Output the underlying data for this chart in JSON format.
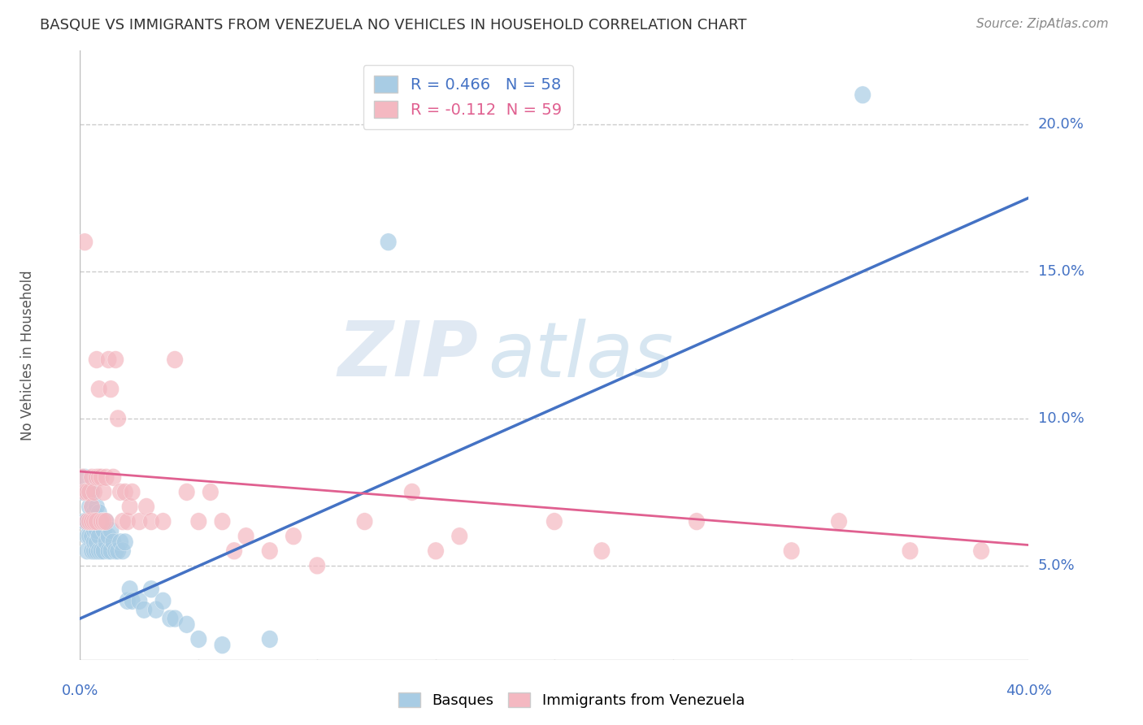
{
  "title": "BASQUE VS IMMIGRANTS FROM VENEZUELA NO VEHICLES IN HOUSEHOLD CORRELATION CHART",
  "source": "Source: ZipAtlas.com",
  "ylabel": "No Vehicles in Household",
  "right_yticks": [
    "5.0%",
    "10.0%",
    "15.0%",
    "20.0%"
  ],
  "right_ytick_vals": [
    0.05,
    0.1,
    0.15,
    0.2
  ],
  "xlim": [
    0.0,
    0.4
  ],
  "ylim": [
    0.018,
    0.225
  ],
  "blue_R": 0.466,
  "blue_N": 58,
  "pink_R": -0.112,
  "pink_N": 59,
  "blue_color": "#a8cce4",
  "pink_color": "#f4b8c1",
  "blue_line_color": "#4472c4",
  "pink_line_color": "#e06090",
  "legend_label_blue": "Basques",
  "legend_label_pink": "Immigrants from Venezuela",
  "background_color": "#ffffff",
  "blue_line_x0": 0.0,
  "blue_line_y0": 0.032,
  "blue_line_x1": 0.4,
  "blue_line_y1": 0.175,
  "pink_line_x0": 0.0,
  "pink_line_y0": 0.082,
  "pink_line_x1": 0.4,
  "pink_line_y1": 0.057,
  "blue_scatter_x": [
    0.001,
    0.002,
    0.002,
    0.003,
    0.003,
    0.003,
    0.004,
    0.004,
    0.004,
    0.004,
    0.005,
    0.005,
    0.005,
    0.005,
    0.005,
    0.006,
    0.006,
    0.006,
    0.006,
    0.007,
    0.007,
    0.007,
    0.007,
    0.008,
    0.008,
    0.008,
    0.009,
    0.009,
    0.01,
    0.01,
    0.011,
    0.011,
    0.012,
    0.012,
    0.013,
    0.013,
    0.014,
    0.015,
    0.016,
    0.017,
    0.018,
    0.019,
    0.02,
    0.021,
    0.022,
    0.025,
    0.027,
    0.03,
    0.032,
    0.035,
    0.038,
    0.04,
    0.045,
    0.05,
    0.06,
    0.08,
    0.13,
    0.33
  ],
  "blue_scatter_y": [
    0.075,
    0.065,
    0.08,
    0.06,
    0.065,
    0.055,
    0.06,
    0.065,
    0.07,
    0.075,
    0.055,
    0.06,
    0.065,
    0.07,
    0.075,
    0.055,
    0.058,
    0.062,
    0.068,
    0.055,
    0.058,
    0.062,
    0.07,
    0.055,
    0.06,
    0.068,
    0.055,
    0.065,
    0.055,
    0.062,
    0.058,
    0.065,
    0.055,
    0.06,
    0.055,
    0.062,
    0.058,
    0.055,
    0.055,
    0.058,
    0.055,
    0.058,
    0.038,
    0.042,
    0.038,
    0.038,
    0.035,
    0.042,
    0.035,
    0.038,
    0.032,
    0.032,
    0.03,
    0.025,
    0.023,
    0.025,
    0.16,
    0.21
  ],
  "pink_scatter_x": [
    0.001,
    0.002,
    0.002,
    0.003,
    0.003,
    0.004,
    0.004,
    0.005,
    0.005,
    0.005,
    0.006,
    0.006,
    0.007,
    0.007,
    0.007,
    0.008,
    0.008,
    0.009,
    0.009,
    0.01,
    0.01,
    0.011,
    0.011,
    0.012,
    0.013,
    0.014,
    0.015,
    0.016,
    0.017,
    0.018,
    0.019,
    0.02,
    0.021,
    0.022,
    0.025,
    0.028,
    0.03,
    0.035,
    0.04,
    0.045,
    0.05,
    0.055,
    0.06,
    0.065,
    0.07,
    0.08,
    0.09,
    0.1,
    0.12,
    0.14,
    0.15,
    0.16,
    0.2,
    0.22,
    0.26,
    0.3,
    0.32,
    0.35,
    0.38
  ],
  "pink_scatter_y": [
    0.08,
    0.075,
    0.16,
    0.065,
    0.075,
    0.065,
    0.075,
    0.065,
    0.07,
    0.08,
    0.065,
    0.075,
    0.065,
    0.08,
    0.12,
    0.08,
    0.11,
    0.065,
    0.08,
    0.065,
    0.075,
    0.065,
    0.08,
    0.12,
    0.11,
    0.08,
    0.12,
    0.1,
    0.075,
    0.065,
    0.075,
    0.065,
    0.07,
    0.075,
    0.065,
    0.07,
    0.065,
    0.065,
    0.12,
    0.075,
    0.065,
    0.075,
    0.065,
    0.055,
    0.06,
    0.055,
    0.06,
    0.05,
    0.065,
    0.075,
    0.055,
    0.06,
    0.065,
    0.055,
    0.065,
    0.055,
    0.065,
    0.055,
    0.055
  ]
}
